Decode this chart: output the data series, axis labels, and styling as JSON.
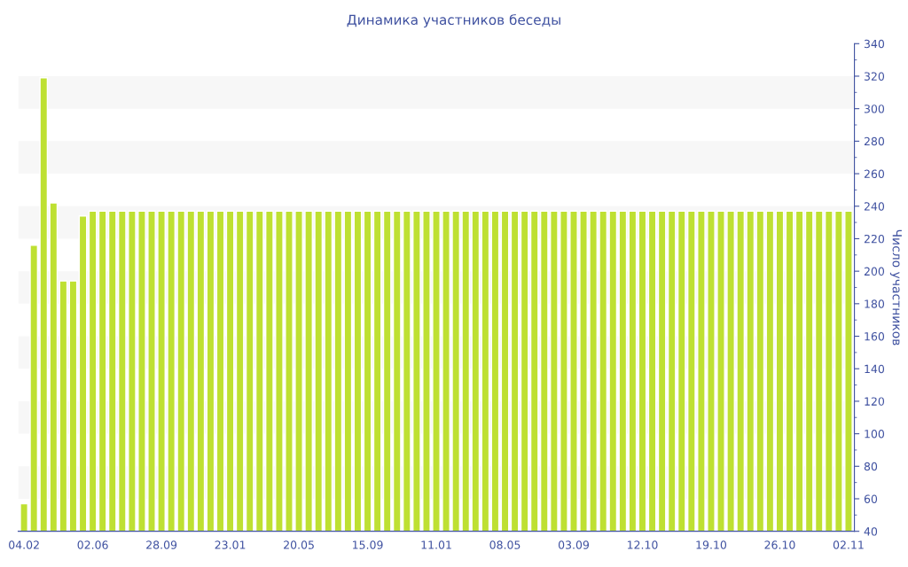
{
  "chart_data": {
    "type": "bar",
    "title": "Динамика участников беседы",
    "ylabel": "Число участников",
    "categories": [
      "04.02",
      null,
      null,
      null,
      null,
      null,
      null,
      "02.06",
      null,
      null,
      null,
      null,
      null,
      null,
      "28.09",
      null,
      null,
      null,
      null,
      null,
      null,
      "23.01",
      null,
      null,
      null,
      null,
      null,
      null,
      "20.05",
      null,
      null,
      null,
      null,
      null,
      null,
      "15.09",
      null,
      null,
      null,
      null,
      null,
      null,
      "11.01",
      null,
      null,
      null,
      null,
      null,
      null,
      "08.05",
      null,
      null,
      null,
      null,
      null,
      null,
      "03.09",
      null,
      null,
      null,
      null,
      null,
      null,
      "12.10",
      null,
      null,
      null,
      null,
      null,
      null,
      "19.10",
      null,
      null,
      null,
      null,
      null,
      null,
      "26.10",
      null,
      null,
      null,
      null,
      null,
      null,
      "02.11"
    ],
    "values": [
      57,
      216,
      319,
      242,
      194,
      194,
      234,
      237,
      237,
      237,
      237,
      237,
      237,
      237,
      237,
      237,
      237,
      237,
      237,
      237,
      237,
      237,
      237,
      237,
      237,
      237,
      237,
      237,
      237,
      237,
      237,
      237,
      237,
      237,
      237,
      237,
      237,
      237,
      237,
      237,
      237,
      237,
      237,
      237,
      237,
      237,
      237,
      237,
      237,
      237,
      237,
      237,
      237,
      237,
      237,
      237,
      237,
      237,
      237,
      237,
      237,
      237,
      237,
      237,
      237,
      237,
      237,
      237,
      237,
      237,
      237,
      237,
      237,
      237,
      237,
      237,
      237,
      237,
      237,
      237,
      237,
      237,
      237,
      237,
      237
    ],
    "color": "#bee032",
    "ylim": [
      40,
      340
    ],
    "yticks": [
      40,
      60,
      80,
      100,
      120,
      140,
      160,
      180,
      200,
      220,
      240,
      260,
      280,
      300,
      320,
      340
    ],
    "bands": [
      {
        "axis": "y",
        "from": 60,
        "to": 80,
        "color": "#f7f7f7"
      },
      {
        "axis": "y",
        "from": 100,
        "to": 120,
        "color": "#f7f7f7"
      },
      {
        "axis": "y",
        "from": 140,
        "to": 160,
        "color": "#f7f7f7"
      },
      {
        "axis": "y",
        "from": 180,
        "to": 200,
        "color": "#f7f7f7"
      },
      {
        "axis": "y",
        "from": 220,
        "to": 240,
        "color": "#f7f7f7"
      },
      {
        "axis": "y",
        "from": 260,
        "to": 280,
        "color": "#f7f7f7"
      },
      {
        "axis": "y",
        "from": 300,
        "to": 320,
        "color": "#f7f7f7"
      }
    ]
  }
}
